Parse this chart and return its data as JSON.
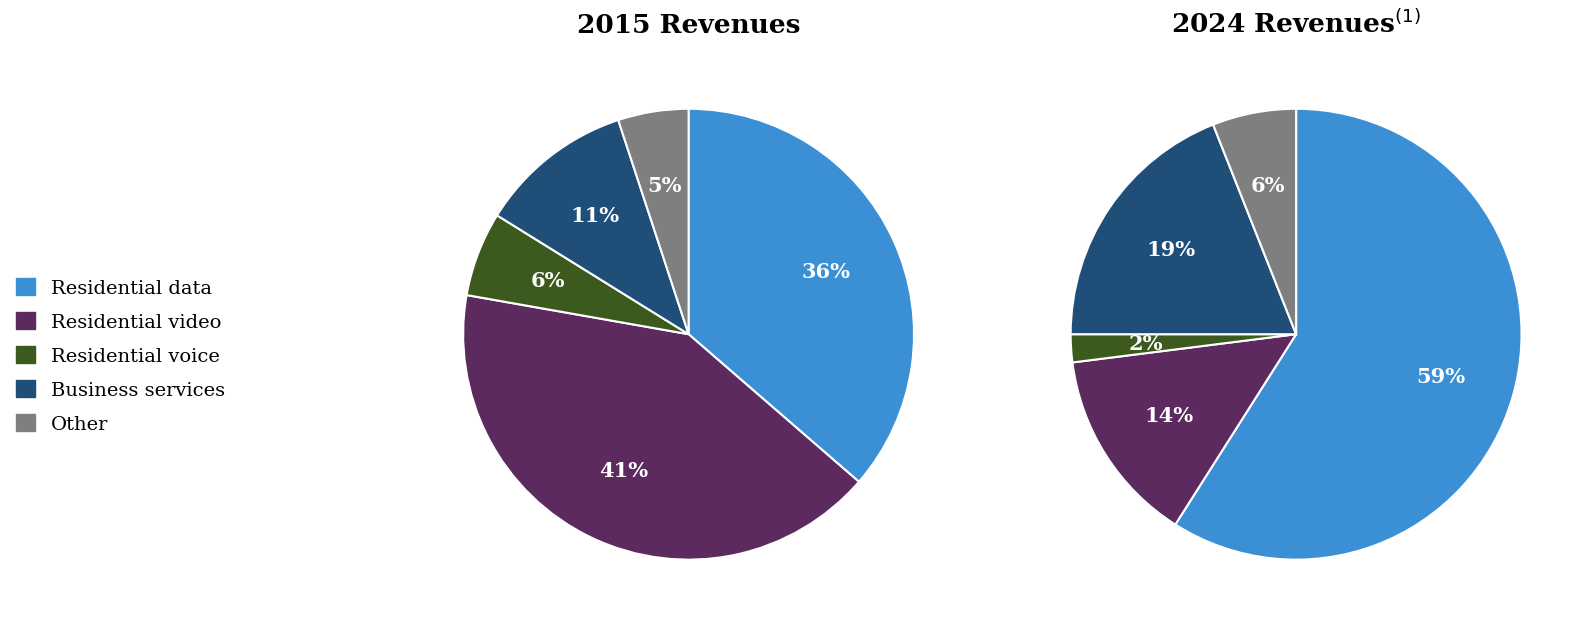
{
  "chart1_title": "2015 Revenues",
  "chart2_title": "2024 Revenues",
  "chart2_title_superscript": "(1)",
  "categories": [
    "Residential data",
    "Residential video",
    "Residential voice",
    "Business services",
    "Other"
  ],
  "colors": [
    "#3B8FD4",
    "#5C2A5E",
    "#3D5A1E",
    "#1F4E79",
    "#7F7F7F"
  ],
  "pie1_values": [
    36,
    41,
    6,
    11,
    5
  ],
  "pie1_labels": [
    "36%",
    "41%",
    "6%",
    "11%",
    "5%"
  ],
  "pie2_values": [
    59,
    14,
    2,
    19,
    6
  ],
  "pie2_labels": [
    "59%",
    "14%",
    "2%",
    "19%",
    "6%"
  ],
  "label_fontsize": 15,
  "title_fontsize": 19,
  "legend_fontsize": 14,
  "background_color": "#FFFFFF"
}
